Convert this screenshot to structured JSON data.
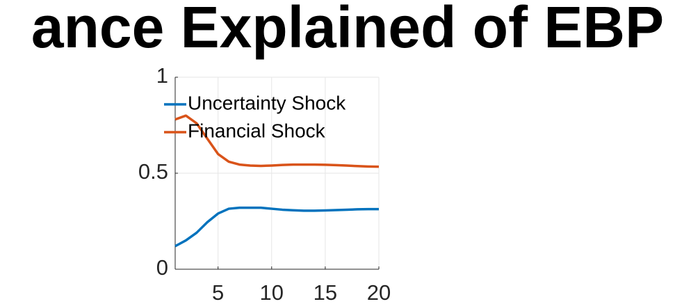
{
  "chart_data": {
    "type": "line",
    "title": "ance Explained of EBP",
    "x": [
      1,
      2,
      3,
      4,
      5,
      6,
      7,
      8,
      9,
      10,
      11,
      12,
      13,
      14,
      15,
      16,
      17,
      18,
      19,
      20
    ],
    "series": [
      {
        "name": "Uncertainty Shock",
        "color": "#0072BD",
        "values": [
          0.12,
          0.15,
          0.19,
          0.245,
          0.29,
          0.315,
          0.32,
          0.32,
          0.32,
          0.315,
          0.31,
          0.307,
          0.305,
          0.305,
          0.306,
          0.308,
          0.31,
          0.312,
          0.313,
          0.313
        ]
      },
      {
        "name": "Financial Shock",
        "color": "#D95319",
        "values": [
          0.78,
          0.8,
          0.76,
          0.68,
          0.6,
          0.56,
          0.545,
          0.54,
          0.538,
          0.54,
          0.543,
          0.545,
          0.545,
          0.545,
          0.544,
          0.542,
          0.54,
          0.537,
          0.535,
          0.534
        ]
      }
    ],
    "xlim": [
      1,
      20
    ],
    "xticks": [
      5,
      10,
      15,
      20
    ],
    "ylim": [
      0,
      1
    ],
    "yticks": [
      0,
      0.5,
      1
    ],
    "grid": true,
    "legend": "northwest"
  }
}
